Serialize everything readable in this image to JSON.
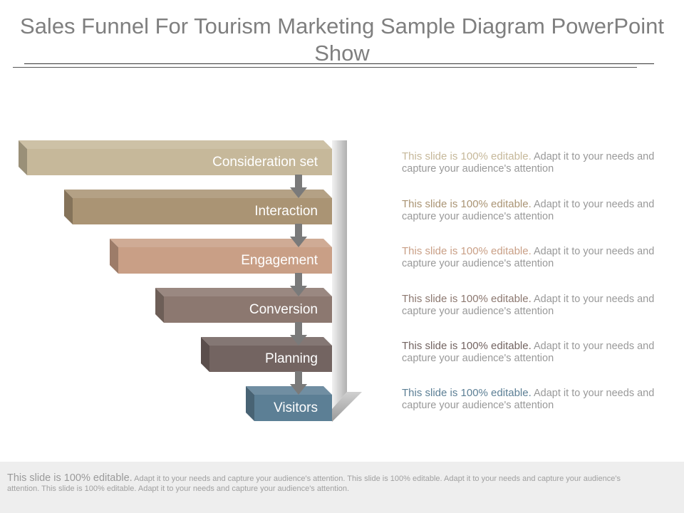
{
  "title": "Sales Funnel For Tourism Marketing Sample Diagram PowerPoint Show",
  "steps": [
    {
      "label": "Consideration set",
      "color": "#c6b89a",
      "text_color": "#c6b89a"
    },
    {
      "label": "Interaction",
      "color": "#aa9474",
      "text_color": "#aa9474"
    },
    {
      "label": "Engagement",
      "color": "#c99f86",
      "text_color": "#c99f86"
    },
    {
      "label": "Conversion",
      "color": "#8c7870",
      "text_color": "#8c7870"
    },
    {
      "label": "Planning",
      "color": "#736461",
      "text_color": "#736461"
    },
    {
      "label": "Visitors",
      "color": "#5c7f95",
      "text_color": "#5c7f95"
    }
  ],
  "descriptions": [
    {
      "head": "This slide is 100% editable.",
      "body": "Adapt it to your needs and capture your audience's attention"
    },
    {
      "head": "This slide is 100% editable.",
      "body": "Adapt it to your needs and capture your audience's attention"
    },
    {
      "head": "This slide is 100% editable.",
      "body": "Adapt it to your needs and capture your audience's attention"
    },
    {
      "head": "This slide is 100% editable.",
      "body": "Adapt it to your needs and capture your audience's attention"
    },
    {
      "head": "This slide is 100% editable.",
      "body": "Adapt it to your needs and capture your audience's attention"
    },
    {
      "head": "This slide is 100% editable.",
      "body": "Adapt it to your needs and capture your audience's attention"
    }
  ],
  "footer": {
    "lead": "This slide is 100% editable.",
    "body": "Adapt it to your needs and capture your audience's attention. This slide is 100% editable. Adapt it to your needs and capture your audience's attention. This slide is 100% editable. Adapt it to your needs and capture your audience's attention."
  },
  "arrow_color": "#7a7a7a"
}
